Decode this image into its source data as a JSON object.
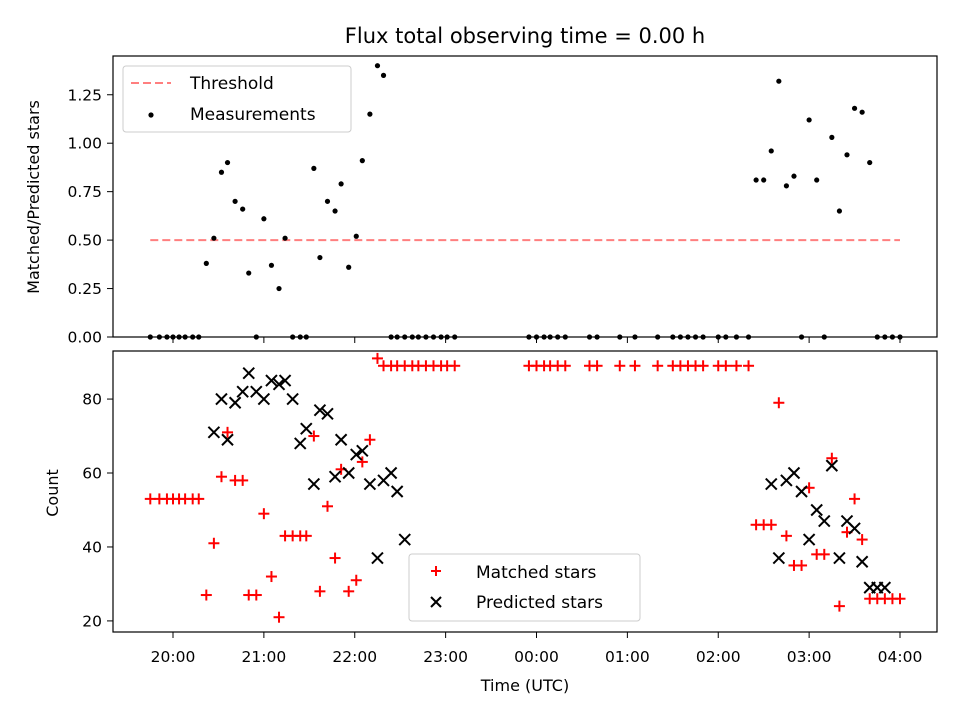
{
  "chart_data": [
    {
      "type": "scatter",
      "title": "Flux total observing time = 0.00 h",
      "ylabel": "Matched/Predicted stars",
      "xlabel": "",
      "ylim": [
        0,
        1.45
      ],
      "yticks": [
        "0.00",
        "0.25",
        "0.50",
        "0.75",
        "1.00",
        "1.25"
      ],
      "ytick_values": [
        0,
        0.25,
        0.5,
        0.75,
        1.0,
        1.25
      ],
      "legend_position": "upper-left",
      "threshold": {
        "name": "Threshold",
        "value": 0.5,
        "x_from": "19:45",
        "x_to": "04:00",
        "color": "#ff7f7f"
      },
      "measurements": {
        "name": "Measurements",
        "color": "#000000",
        "x": [
          "19:45",
          "19:51",
          "19:56",
          "20:00",
          "20:04",
          "20:08",
          "20:13",
          "20:17",
          "20:22",
          "20:27",
          "20:32",
          "20:36",
          "20:41",
          "20:46",
          "20:50",
          "20:55",
          "21:00",
          "21:05",
          "21:10",
          "21:14",
          "21:19",
          "21:24",
          "21:28",
          "21:33",
          "21:37",
          "21:42",
          "21:47",
          "21:51",
          "21:56",
          "22:01",
          "22:05",
          "22:10",
          "22:15",
          "22:19",
          "22:24",
          "22:28",
          "22:33",
          "22:38",
          "22:42",
          "22:47",
          "22:52",
          "22:57",
          "23:01",
          "23:06",
          "23:55",
          "00:00",
          "00:05",
          "00:09",
          "00:14",
          "00:19",
          "00:35",
          "00:40",
          "00:55",
          "01:05",
          "01:20",
          "01:30",
          "01:35",
          "01:40",
          "01:45",
          "01:50",
          "02:00",
          "02:05",
          "02:12",
          "02:20",
          "02:25",
          "02:30",
          "02:35",
          "02:40",
          "02:45",
          "02:50",
          "02:55",
          "03:00",
          "03:05",
          "03:10",
          "03:15",
          "03:20",
          "03:25",
          "03:30",
          "03:35",
          "03:40",
          "03:45",
          "03:50",
          "03:55",
          "04:00"
        ],
        "y": [
          0,
          0,
          0,
          0,
          0,
          0,
          0,
          0,
          0.38,
          0.51,
          0.85,
          0.9,
          0.7,
          0.66,
          0.33,
          0,
          0.61,
          0.37,
          0.25,
          0.51,
          0,
          0,
          0,
          0.87,
          0.41,
          0.7,
          0.65,
          0.79,
          0.36,
          0.52,
          0.91,
          1.15,
          1.4,
          1.35,
          0,
          0,
          0,
          0,
          0,
          0,
          0,
          0,
          0,
          0,
          0,
          0,
          0,
          0,
          0,
          0,
          0,
          0,
          0,
          0,
          0,
          0,
          0,
          0,
          0,
          0,
          0,
          0,
          0,
          0,
          0.81,
          0.81,
          0.96,
          1.32,
          0.78,
          0.83,
          0,
          1.12,
          0.81,
          0,
          1.03,
          0.65,
          0.94,
          1.18,
          1.16,
          0.9,
          0,
          0,
          0,
          0
        ]
      }
    },
    {
      "type": "scatter",
      "title": "",
      "xlabel": "Time (UTC)",
      "ylabel": "Count",
      "ylim": [
        17,
        93
      ],
      "yticks": [
        "20",
        "40",
        "60",
        "80"
      ],
      "ytick_values": [
        20,
        40,
        60,
        80
      ],
      "xticks": [
        "20:00",
        "21:00",
        "22:00",
        "23:00",
        "00:00",
        "01:00",
        "02:00",
        "03:00",
        "04:00"
      ],
      "legend_position": "lower-center",
      "matched": {
        "name": "Matched stars",
        "color": "#ff0000",
        "x": [
          "19:45",
          "19:51",
          "19:56",
          "20:00",
          "20:04",
          "20:08",
          "20:13",
          "20:17",
          "20:22",
          "20:27",
          "20:32",
          "20:36",
          "20:41",
          "20:46",
          "20:50",
          "20:55",
          "21:00",
          "21:05",
          "21:10",
          "21:14",
          "21:19",
          "21:24",
          "21:28",
          "21:33",
          "21:37",
          "21:42",
          "21:47",
          "21:51",
          "21:56",
          "22:01",
          "22:05",
          "22:10",
          "22:15",
          "22:19",
          "22:24",
          "22:28",
          "22:33",
          "22:38",
          "22:42",
          "22:47",
          "22:52",
          "22:57",
          "23:01",
          "23:06",
          "23:55",
          "00:00",
          "00:05",
          "00:09",
          "00:14",
          "00:19",
          "00:35",
          "00:40",
          "00:55",
          "01:05",
          "01:20",
          "01:30",
          "01:35",
          "01:40",
          "01:45",
          "01:50",
          "02:00",
          "02:05",
          "02:12",
          "02:20",
          "02:25",
          "02:30",
          "02:35",
          "02:40",
          "02:45",
          "02:50",
          "02:55",
          "03:00",
          "03:05",
          "03:10",
          "03:15",
          "03:20",
          "03:25",
          "03:30",
          "03:35",
          "03:40",
          "03:45",
          "03:50",
          "03:55",
          "04:00"
        ],
        "y": [
          53,
          53,
          53,
          53,
          53,
          53,
          53,
          53,
          27,
          41,
          59,
          71,
          58,
          58,
          27,
          27,
          49,
          32,
          21,
          43,
          43,
          43,
          43,
          70,
          28,
          51,
          37,
          61,
          28,
          31,
          63,
          69,
          91,
          89,
          89,
          89,
          89,
          89,
          89,
          89,
          89,
          89,
          89,
          89,
          89,
          89,
          89,
          89,
          89,
          89,
          89,
          89,
          89,
          89,
          89,
          89,
          89,
          89,
          89,
          89,
          89,
          89,
          89,
          89,
          46,
          46,
          46,
          79,
          43,
          35,
          35,
          56,
          38,
          38,
          64,
          24,
          44,
          53,
          42,
          26,
          26,
          26,
          26,
          26
        ]
      },
      "predicted": {
        "name": "Predicted stars",
        "color": "#000000",
        "x": [
          "20:27",
          "20:32",
          "20:36",
          "20:41",
          "20:46",
          "20:50",
          "20:55",
          "21:00",
          "21:05",
          "21:10",
          "21:14",
          "21:19",
          "21:24",
          "21:28",
          "21:33",
          "21:37",
          "21:42",
          "21:47",
          "21:51",
          "21:56",
          "22:01",
          "22:05",
          "22:10",
          "22:15",
          "22:19",
          "22:24",
          "22:28",
          "22:33",
          "02:35",
          "02:40",
          "02:45",
          "02:50",
          "02:55",
          "03:00",
          "03:05",
          "03:10",
          "03:15",
          "03:20",
          "03:25",
          "03:30",
          "03:35",
          "03:40",
          "03:45",
          "03:50"
        ],
        "y": [
          71,
          80,
          69,
          79,
          82,
          87,
          82,
          80,
          85,
          84,
          85,
          80,
          68,
          72,
          57,
          77,
          76,
          59,
          69,
          60,
          65,
          66,
          57,
          37,
          58,
          60,
          55,
          42,
          57,
          37,
          58,
          60,
          55,
          42,
          50,
          47,
          62,
          37,
          47,
          45,
          36,
          29,
          29,
          29
        ]
      }
    }
  ]
}
